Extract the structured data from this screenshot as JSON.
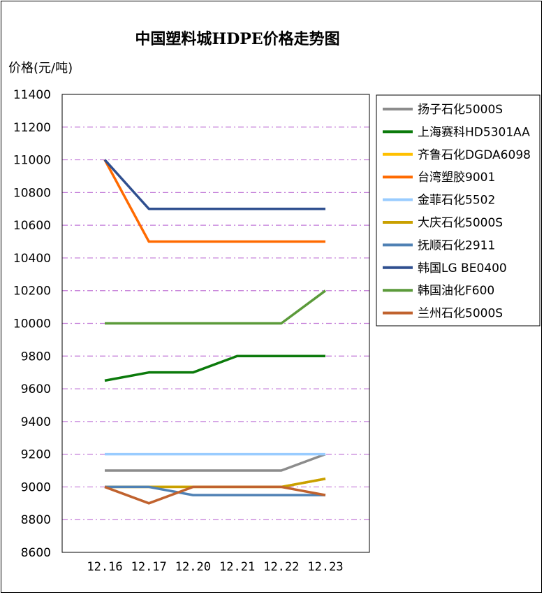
{
  "chart_data": {
    "type": "line",
    "title": "中国塑料城HDPE价格走势图",
    "ylabel": "价格(元/吨)",
    "xlabel": "",
    "categories": [
      "12.16",
      "12.17",
      "12.20",
      "12.21",
      "12.22",
      "12.23"
    ],
    "ylim": [
      8600,
      11400
    ],
    "yticks": [
      "11400",
      "11200",
      "11000",
      "10800",
      "10600",
      "10400",
      "10200",
      "10000",
      "9800",
      "9600",
      "9400",
      "9200",
      "9000",
      "8800",
      "8600"
    ],
    "grid": true,
    "legend_position": "right",
    "series": [
      {
        "name": "扬子石化5000S",
        "color": "#8c8c8c",
        "values": [
          9100,
          9100,
          9100,
          9100,
          9100,
          9200
        ]
      },
      {
        "name": "上海赛科HD5301AA",
        "color": "#0b7a0b",
        "values": [
          9650,
          9700,
          9700,
          9800,
          9800,
          9800
        ]
      },
      {
        "name": "齐鲁石化DGDA6098",
        "color": "#ffc000",
        "values": [
          9000,
          9000,
          9000,
          9000,
          9000,
          9050
        ]
      },
      {
        "name": "台湾塑胶9001",
        "color": "#ff6a00",
        "values": [
          11000,
          10500,
          10500,
          10500,
          10500,
          10500
        ]
      },
      {
        "name": "金菲石化5502",
        "color": "#99ccff",
        "values": [
          9200,
          9200,
          9200,
          9200,
          9200,
          9200
        ]
      },
      {
        "name": "大庆石化5000S",
        "color": "#c9a000",
        "values": [
          9000,
          9000,
          9000,
          9000,
          9000,
          9050
        ]
      },
      {
        "name": "抚顺石化2911",
        "color": "#4f81b4",
        "values": [
          9000,
          9000,
          8950,
          8950,
          8950,
          8950
        ]
      },
      {
        "name": "韩国LG BE0400",
        "color": "#2f4f8f",
        "values": [
          11000,
          10700,
          10700,
          10700,
          10700,
          10700
        ]
      },
      {
        "name": "韩国油化F600",
        "color": "#5b9a3a",
        "values": [
          10000,
          10000,
          10000,
          10000,
          10000,
          10200
        ]
      },
      {
        "name": "兰州石化5000S",
        "color": "#c0622e",
        "values": [
          9000,
          8900,
          9000,
          9000,
          9000,
          8950
        ]
      }
    ]
  }
}
